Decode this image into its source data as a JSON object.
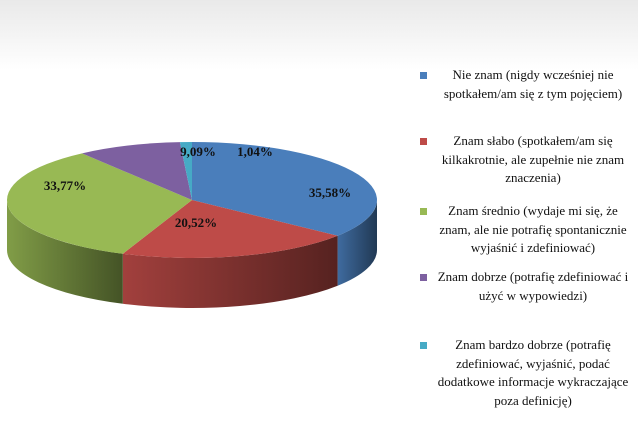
{
  "chart_data": {
    "type": "pie",
    "title": "",
    "slices": [
      {
        "label": "Nie znam (nigdy wcześniej nie spotkałem/am się z tym pojęciem)",
        "value": 35.58,
        "display": "35,58%",
        "color": "#4a7ebb"
      },
      {
        "label": "Znam słabo (spotkałem/am się kilkakrotnie, ale zupełnie nie znam znaczenia)",
        "value": 20.52,
        "display": "20,52%",
        "color": "#be4b48"
      },
      {
        "label": "Znam średnio (wydaje mi się, że znam, ale nie potrafię spontanicznie wyjaśnić i zdefiniować)",
        "value": 33.77,
        "display": "33,77%",
        "color": "#98b954"
      },
      {
        "label": "Znam dobrze (potrafię zdefiniować i użyć w wypowiedzi)",
        "value": 9.09,
        "display": "9,09%",
        "color": "#7d60a0"
      },
      {
        "label": "Znam bardzo dobrze (potrafię zdefiniować, wyjaśnić, podać dodatkowe informacje wykraczające poza definicję)",
        "value": 1.04,
        "display": "1,04%",
        "color": "#46aac5"
      }
    ],
    "style": "3d",
    "legend_position": "right"
  }
}
